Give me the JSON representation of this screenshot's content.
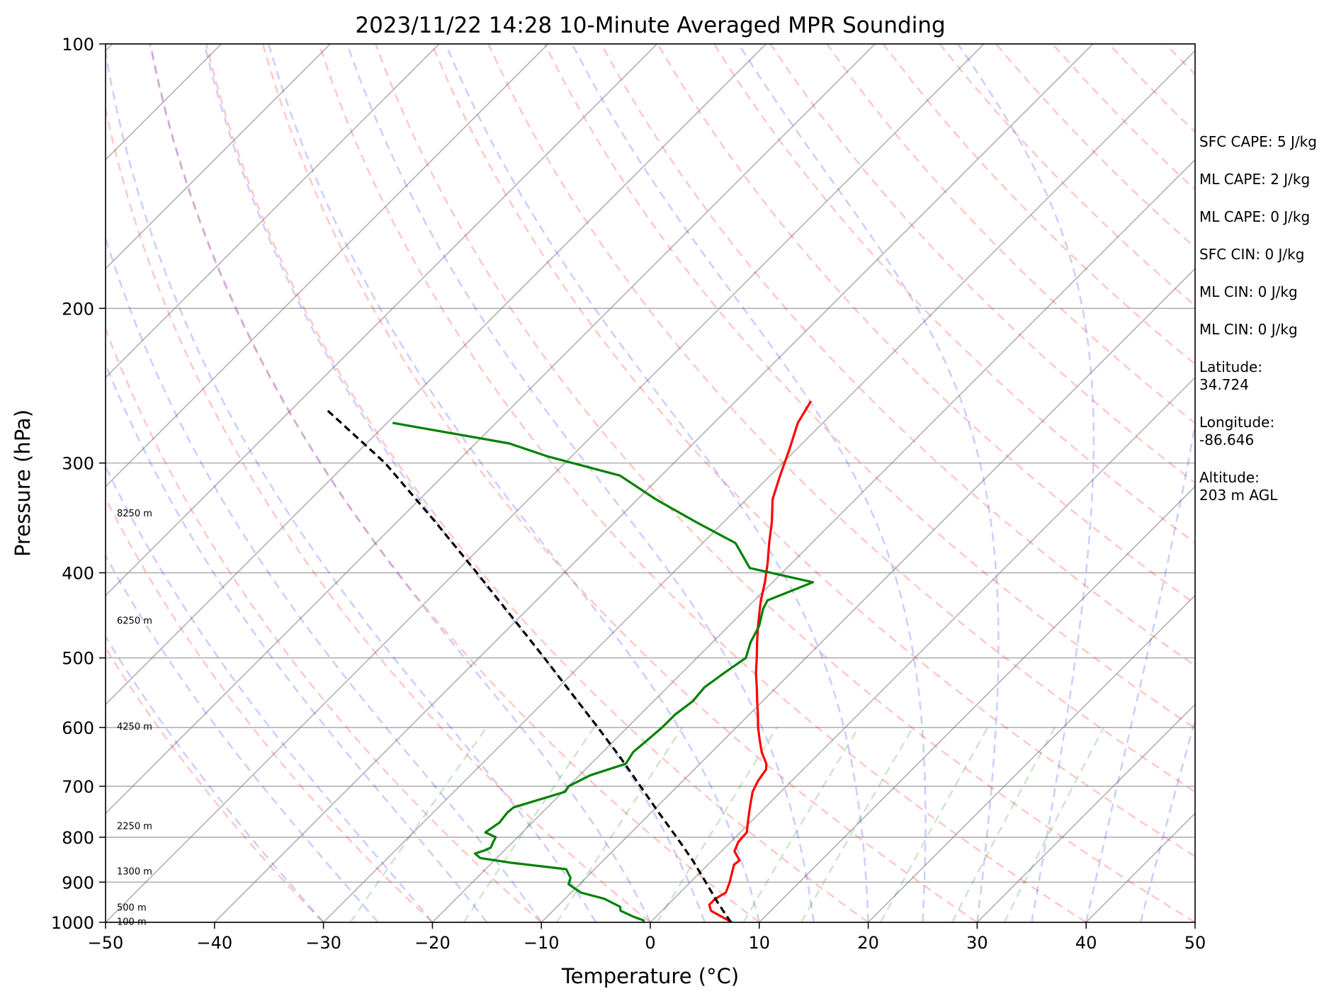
{
  "chart_data": {
    "type": "line",
    "title": "2023/11/22 14:28 10-Minute Averaged MPR Sounding",
    "xlabel": "Temperature (°C)",
    "ylabel": "Pressure (hPa)",
    "xlim": [
      -50,
      50
    ],
    "ylim": [
      1000,
      100
    ],
    "y_scale": "log",
    "skew": "skew-T log-p (isotherms skewed 45°)",
    "grid": true,
    "xticks": [
      "−50",
      "−40",
      "−30",
      "−20",
      "−10",
      "0",
      "10",
      "20",
      "30",
      "40",
      "50"
    ],
    "yticks": [
      "100",
      "200",
      "300",
      "400",
      "500",
      "600",
      "700",
      "800",
      "900",
      "1000"
    ],
    "series": [
      {
        "role": "temperature",
        "color": "#ff0000",
        "p": [
          1000,
          985,
          970,
          955,
          940,
          925,
          900,
          880,
          860,
          850,
          830,
          810,
          790,
          770,
          750,
          730,
          710,
          690,
          670,
          660,
          640,
          620,
          600,
          580,
          560,
          540,
          520,
          500,
          480,
          460,
          440,
          430,
          410,
          390,
          370,
          350,
          330,
          310,
          290,
          270,
          255
        ],
        "t": [
          7.5,
          6.0,
          4.5,
          3.8,
          3.8,
          4.2,
          3.6,
          3.0,
          2.4,
          2.5,
          1.2,
          0.7,
          0.6,
          -0.2,
          -1.0,
          -1.8,
          -2.6,
          -3.1,
          -3.4,
          -3.9,
          -5.4,
          -6.7,
          -8.0,
          -9.2,
          -10.5,
          -11.8,
          -13.2,
          -14.5,
          -15.9,
          -17.3,
          -18.7,
          -19.4,
          -20.7,
          -22.2,
          -23.9,
          -25.6,
          -27.6,
          -29.1,
          -30.6,
          -32.3,
          -33.1
        ]
      },
      {
        "role": "dewpoint",
        "color": "#008000",
        "p": [
          1000,
          995,
          985,
          970,
          960,
          940,
          925,
          905,
          890,
          870,
          855,
          845,
          835,
          828,
          822,
          810,
          800,
          790,
          770,
          750,
          740,
          710,
          700,
          680,
          660,
          640,
          620,
          600,
          580,
          560,
          540,
          520,
          500,
          480,
          460,
          440,
          430,
          410,
          395,
          370,
          350,
          330,
          310,
          295,
          285,
          270
        ],
        "t": [
          -0.6,
          -0.8,
          -2.1,
          -3.8,
          -4.2,
          -6.4,
          -9.1,
          -11.0,
          -11.4,
          -12.6,
          -18.4,
          -21.5,
          -22.4,
          -21.8,
          -21.5,
          -21.8,
          -22.0,
          -23.4,
          -23.0,
          -23.2,
          -23.1,
          -19.8,
          -20.0,
          -19.0,
          -16.8,
          -17.2,
          -17.0,
          -16.8,
          -16.8,
          -16.4,
          -16.6,
          -16.1,
          -15.5,
          -16.5,
          -17.2,
          -18.4,
          -18.8,
          -16.3,
          -23.4,
          -27.0,
          -32.6,
          -38.3,
          -43.8,
          -52.1,
          -56.9,
          -69.5
        ]
      },
      {
        "role": "parcel profile",
        "color": "#000000",
        "dashed": true,
        "p": [
          1000,
          950,
          900,
          850,
          800,
          750,
          700,
          650,
          600,
          550,
          500,
          450,
          400,
          350,
          300,
          260
        ],
        "t": [
          7.4,
          4.4,
          1.4,
          -1.8,
          -5.4,
          -9.3,
          -13.4,
          -17.8,
          -22.7,
          -28.1,
          -34.0,
          -40.6,
          -48.0,
          -56.5,
          -66.5,
          -77.0
        ]
      }
    ],
    "height_labels": [
      "8250 m",
      "6250 m",
      "4250 m",
      "2250 m",
      "1300 m",
      "500 m",
      "100 m"
    ],
    "height_label_pressures": [
      342,
      453,
      598,
      776,
      874,
      961,
      997
    ],
    "reference_lines": {
      "dry_adiabats_color": "#ff0000",
      "moist_adiabats_color": "#0000ff",
      "mixing_ratio_color": "#008000",
      "isotherms_color": "#808080"
    }
  },
  "info_panel": {
    "sfc_cape": "SFC CAPE: 5 J/kg",
    "ml_cape_1": "ML CAPE: 2 J/kg",
    "ml_cape_2": "ML CAPE: 0 J/kg",
    "sfc_cin": "SFC CIN: 0 J/kg",
    "ml_cin_1": "ML CIN: 0 J/kg",
    "ml_cin_2": "ML CIN: 0 J/kg",
    "latitude": "Latitude:\n34.724",
    "longitude": "Longitude:\n-86.646",
    "altitude": "Altitude:\n203 m AGL"
  }
}
